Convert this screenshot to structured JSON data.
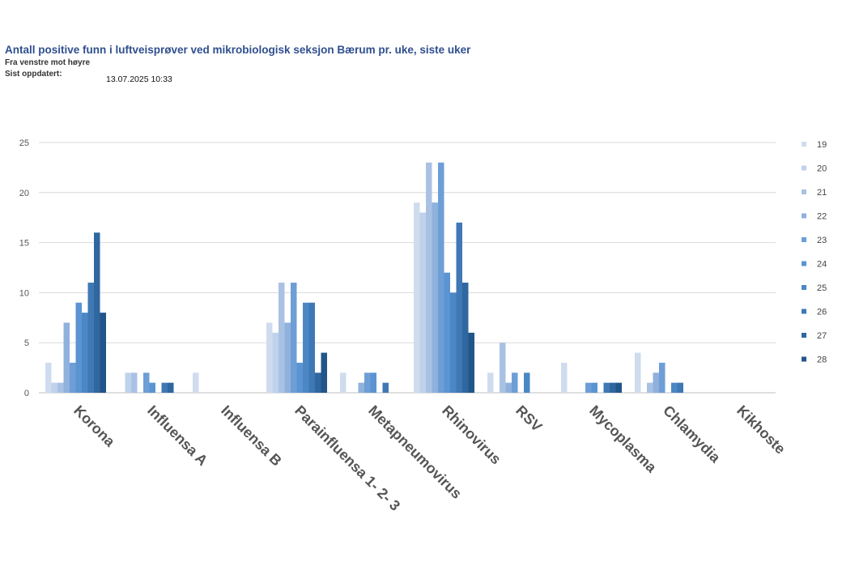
{
  "header": {
    "title": "Antall positive funn i luftveisprøver ved mikrobiologisk seksjon Bærum pr. uke, siste uker",
    "subtitle": "Fra venstre mot høyre",
    "updated_label": "Sist oppdatert:",
    "updated_value": "13.07.2025 10:33"
  },
  "chart_data": {
    "type": "bar",
    "title": "",
    "xlabel": "",
    "ylabel": "",
    "ylim": [
      0,
      25
    ],
    "yticks": [
      0,
      5,
      10,
      15,
      20,
      25
    ],
    "grid": true,
    "legend_position": "right",
    "categories": [
      "Korona",
      "Influensa A",
      "Influensa B",
      "Parainfluensa 1- 2- 3",
      "Metapneumovirus",
      "Rhinovirus",
      "RSV",
      "Mycoplasma",
      "Chlamydia",
      "Kikhoste"
    ],
    "series": [
      {
        "name": "19",
        "color": "#cfdcee",
        "values": [
          3,
          0,
          2,
          7,
          2,
          19,
          2,
          3,
          4,
          0
        ]
      },
      {
        "name": "20",
        "color": "#bfd2ec",
        "values": [
          1,
          2,
          0,
          6,
          0,
          18,
          0,
          0,
          0,
          0
        ]
      },
      {
        "name": "21",
        "color": "#a9c2e4",
        "values": [
          1,
          2,
          0,
          11,
          0,
          23,
          5,
          0,
          1,
          0
        ]
      },
      {
        "name": "22",
        "color": "#8fb1dc",
        "values": [
          7,
          0,
          0,
          7,
          1,
          19,
          1,
          0,
          2,
          0
        ]
      },
      {
        "name": "23",
        "color": "#6d9ed6",
        "values": [
          3,
          2,
          0,
          11,
          2,
          23,
          2,
          1,
          3,
          0
        ]
      },
      {
        "name": "24",
        "color": "#5b94d2",
        "values": [
          9,
          1,
          0,
          3,
          2,
          12,
          0,
          1,
          0,
          0
        ]
      },
      {
        "name": "25",
        "color": "#4c87c5",
        "values": [
          8,
          0,
          0,
          9,
          0,
          10,
          2,
          0,
          1,
          0
        ]
      },
      {
        "name": "26",
        "color": "#3f78b4",
        "values": [
          11,
          1,
          0,
          9,
          1,
          17,
          0,
          1,
          1,
          0
        ]
      },
      {
        "name": "27",
        "color": "#2f679f",
        "values": [
          16,
          1,
          0,
          2,
          0,
          11,
          0,
          1,
          0,
          0
        ]
      },
      {
        "name": "28",
        "color": "#22558a",
        "values": [
          8,
          0,
          0,
          4,
          0,
          6,
          0,
          1,
          0,
          0
        ]
      }
    ]
  }
}
